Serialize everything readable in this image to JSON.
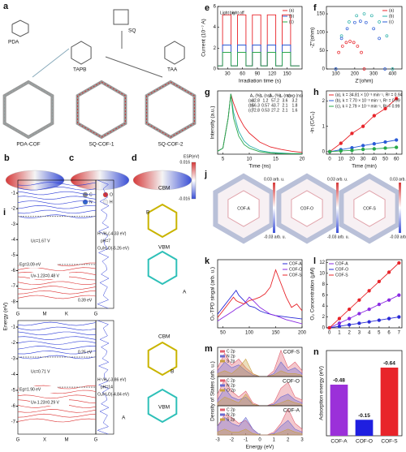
{
  "figure": {
    "a": {
      "panel": "a",
      "labels": [
        "PDA",
        "SQ",
        "TAPB",
        "TAA",
        "PDA-COF",
        "SQ-COF-1",
        "SQ-COF-2"
      ]
    },
    "bcd": {
      "panels": [
        "b",
        "c",
        "d"
      ],
      "colorbar_title": "ESP(eV)",
      "colorbar_ticks": [
        0.016,
        -0.016
      ],
      "atoms": [
        "C",
        "O",
        "N",
        "H"
      ]
    },
    "i": {
      "panel": "i",
      "ylabel": "Energy (eV)",
      "top": {
        "yticks": [
          -1,
          -2,
          -3,
          -4,
          -5,
          -6,
          -7,
          -8
        ],
        "kpoints": [
          "G",
          "M",
          "K",
          "G"
        ],
        "annotations": [
          "Uc=1.67 V",
          "Eg=3.09 eV",
          "Uv-1.23=0.48 V",
          "H⁺/H₂(-4.33 eV)",
          "pH=7",
          "O₂/H₂O(-5.26 eV)",
          "0.39 eV"
        ],
        "structure_labels": [
          "CBM",
          "B",
          "VBM",
          "A"
        ]
      },
      "bottom": {
        "yticks": [
          -1,
          -2,
          -3,
          -4,
          -5,
          -6,
          -7
        ],
        "kpoints": [
          "G",
          "X",
          "M",
          "G"
        ],
        "annotations": [
          "0.25 eV",
          "Uc=0.71 V",
          "Eg=1.90 eV",
          "Uv-1.23=0.29 V",
          "H⁺/H₂(-3.86 eV)",
          "pH=14",
          "O₂/H₂O(-4.84 eV)"
        ],
        "structure_labels": [
          "CBM",
          "B",
          "VBM",
          "A"
        ]
      }
    },
    "j": {
      "panel": "j",
      "labels": [
        "COF-A",
        "COF-O",
        "COF-S"
      ],
      "colorbar_max": "0.03 arb. u.",
      "colorbar_min": "-0.03 arb. u."
    }
  },
  "chart_data": [
    {
      "type": "line",
      "panel": "e",
      "xlabel": "Irradiation time (s)",
      "ylabel": "Current (10⁻⁷ A)",
      "annotations": [
        "Light on",
        "Light off"
      ],
      "x": [
        10,
        20,
        20,
        37,
        37,
        50,
        50,
        67,
        67,
        80,
        80,
        97,
        97,
        110,
        110,
        127,
        127,
        140,
        140,
        157,
        157,
        175
      ],
      "xlim": [
        10,
        180
      ],
      "xticks": [
        30,
        60,
        90,
        120,
        150
      ],
      "ylim": [
        0,
        6
      ],
      "yticks": [
        0,
        2,
        4,
        6
      ],
      "legend": "upper right",
      "series": [
        {
          "name": "(a)",
          "color": "#e8242a",
          "values": [
            0.3,
            0.3,
            5.2,
            5.2,
            0.3,
            0.3,
            5.2,
            5.2,
            0.3,
            0.3,
            5.2,
            5.2,
            0.3,
            0.3,
            5.2,
            5.2,
            0.3,
            0.3,
            5.2,
            5.2,
            0.3,
            0.3
          ]
        },
        {
          "name": "(b)",
          "color": "#2a5bd7",
          "values": [
            0.3,
            0.3,
            2.3,
            2.3,
            0.3,
            0.3,
            2.3,
            2.3,
            0.3,
            0.3,
            2.3,
            2.3,
            0.3,
            0.3,
            2.3,
            2.3,
            0.3,
            0.3,
            2.3,
            2.3,
            0.3,
            0.3
          ]
        },
        {
          "name": "(c)",
          "color": "#2aa84a",
          "values": [
            0.3,
            0.3,
            1.6,
            1.6,
            0.3,
            0.3,
            1.6,
            1.6,
            0.3,
            0.3,
            1.6,
            1.6,
            0.3,
            0.3,
            1.6,
            1.6,
            0.3,
            0.3,
            1.6,
            1.6,
            0.3,
            0.3
          ]
        }
      ]
    },
    {
      "type": "scatter",
      "panel": "f",
      "xlabel": "Z'(ohm)",
      "ylabel": "-Z''(ohm)",
      "xlim": [
        50,
        450
      ],
      "xticks": [
        100,
        200,
        300,
        400
      ],
      "ylim": [
        0,
        170
      ],
      "yticks": [
        0,
        50,
        100,
        150
      ],
      "legend": "upper right",
      "series": [
        {
          "name": "(a)",
          "color": "#e8242a",
          "x": [
            100,
            115,
            135,
            155,
            175,
            195,
            215,
            235,
            250
          ],
          "values": [
            0,
            45,
            62,
            72,
            75,
            72,
            62,
            45,
            0
          ]
        },
        {
          "name": "(b)",
          "color": "#2ab0a8",
          "x": [
            100,
            130,
            170,
            210,
            250,
            290,
            330,
            370,
            400
          ],
          "values": [
            0,
            90,
            128,
            145,
            150,
            145,
            128,
            90,
            0
          ]
        },
        {
          "name": "(c)",
          "color": "#2a5bd7",
          "x": [
            100,
            130,
            160,
            200,
            230,
            260,
            300,
            330,
            360
          ],
          "values": [
            0,
            83,
            109.5,
            126.5,
            130,
            126.5,
            109.5,
            83,
            0
          ]
        }
      ]
    },
    {
      "type": "line",
      "panel": "g",
      "xlabel": "Time (ns)",
      "ylabel": "Intensity (a.u.)",
      "x": [
        4,
        5,
        6,
        6.5,
        7,
        8,
        9,
        10,
        12,
        14,
        16,
        18,
        20
      ],
      "xlim": [
        4,
        20
      ],
      "xticks": [
        5,
        10,
        15,
        20
      ],
      "ylim": [
        0,
        1.05
      ],
      "series": [
        {
          "name": "(a)",
          "color": "#e8242a",
          "values": [
            0.05,
            0.1,
            0.6,
            1,
            0.85,
            0.62,
            0.46,
            0.35,
            0.2,
            0.12,
            0.08,
            0.05,
            0.03
          ]
        },
        {
          "name": "(b)",
          "color": "#2ab0a8",
          "values": [
            0.05,
            0.1,
            0.6,
            1,
            0.7,
            0.38,
            0.22,
            0.14,
            0.06,
            0.03,
            0.02,
            0.01,
            0.01
          ]
        },
        {
          "name": "(c)",
          "color": "#2aa84a",
          "values": [
            0.05,
            0.1,
            0.6,
            1,
            0.6,
            0.3,
            0.16,
            0.1,
            0.04,
            0.02,
            0.01,
            0.01,
            0.01
          ]
        }
      ],
      "table": {
        "columns": [
          "A₁ (%)",
          "τ₁ (ns)",
          "A₂ (%)",
          "τ₂ (ns)",
          "τavg (ns)"
        ],
        "rows": [
          {
            "label": "(a)",
            "cells": [
              42.8,
              1.2,
              57.2,
              3.6,
              3.2
            ]
          },
          {
            "label": "(b)",
            "cells": [
              56.3,
              0.57,
              43.7,
              2.1,
              1.8
            ]
          },
          {
            "label": "(c)",
            "cells": [
              72.8,
              0.53,
              27.2,
              2.1,
              1.6
            ]
          }
        ]
      }
    },
    {
      "type": "line",
      "markers": true,
      "panel": "h",
      "xlabel": "Time (min)",
      "ylabel": "-ln (C/C₀)",
      "x": [
        0,
        10,
        20,
        30,
        40,
        50,
        60
      ],
      "xlim": [
        -3,
        65
      ],
      "xticks": [
        0,
        10,
        20,
        30,
        40,
        50,
        60
      ],
      "ylim": [
        -0.1,
        2.4
      ],
      "yticks": [
        0,
        1,
        2
      ],
      "legend": "upper left",
      "series": [
        {
          "name": "(a), k = 34.81 × 10⁻³ min⁻¹, R² = 0.94",
          "color": "#e8242a",
          "values": [
            0,
            0.33,
            0.72,
            1.0,
            1.42,
            1.7,
            2.1
          ]
        },
        {
          "name": "(b), k = 7.70 × 10⁻³ min⁻¹, R² = 0.99",
          "color": "#2a5bd7",
          "values": [
            0,
            0.08,
            0.15,
            0.24,
            0.31,
            0.38,
            0.46
          ]
        },
        {
          "name": "(c), k = 2.79 × 10⁻³ min⁻¹, R² = 0.99",
          "color": "#2aa84a",
          "values": [
            0,
            0.03,
            0.05,
            0.09,
            0.11,
            0.14,
            0.17
          ]
        }
      ]
    },
    {
      "type": "line",
      "panel": "k",
      "ylabel": "O₂-TPD singal (arb. u.)",
      "x": [
        40,
        50,
        60,
        70,
        75,
        80,
        90,
        100,
        110,
        120,
        130,
        140,
        150,
        160,
        170,
        180,
        190,
        200
      ],
      "xlim": [
        40,
        200
      ],
      "xticks": [
        50,
        100,
        150,
        200
      ],
      "ylim": [
        0,
        1
      ],
      "legend": "upper right",
      "series": [
        {
          "name": "COF-A",
          "color": "#2a2ad7",
          "values": [
            0.2,
            0.3,
            0.4,
            0.5,
            0.55,
            0.48,
            0.4,
            0.32,
            0.3,
            0.25,
            0.22,
            0.2,
            0.18,
            0.17,
            0.16,
            0.15,
            0.14,
            0.13
          ]
        },
        {
          "name": "COF-O",
          "color": "#8a2be2",
          "values": [
            0.1,
            0.15,
            0.2,
            0.25,
            0.28,
            0.3,
            0.35,
            0.45,
            0.38,
            0.3,
            0.25,
            0.2,
            0.18,
            0.15,
            0.12,
            0.1,
            0.08,
            0.06
          ]
        },
        {
          "name": "COF-S",
          "color": "#e8242a",
          "values": [
            0.15,
            0.25,
            0.35,
            0.45,
            0.4,
            0.38,
            0.35,
            0.4,
            0.42,
            0.45,
            0.5,
            0.6,
            0.85,
            0.65,
            0.45,
            0.3,
            0.35,
            0.25
          ]
        }
      ]
    },
    {
      "type": "line",
      "markers": true,
      "panel": "l",
      "ylabel": "O₂ Concentration (μM)",
      "x": [
        0,
        1,
        2,
        3,
        4,
        5,
        6,
        7
      ],
      "xlim": [
        -0.3,
        7.3
      ],
      "xticks": [
        0,
        1,
        2,
        3,
        4,
        5,
        6,
        7
      ],
      "ylim": [
        0,
        12.5
      ],
      "yticks": [
        0,
        2,
        4,
        6,
        8,
        10,
        12
      ],
      "legend": "upper left",
      "series": [
        {
          "name": "COF-A",
          "color": "#8a2be2",
          "values": [
            0,
            0.85,
            1.7,
            2.6,
            3.4,
            4.3,
            5.1,
            6
          ]
        },
        {
          "name": "COF-O",
          "color": "#2a2ad7",
          "values": [
            0,
            0.28,
            0.56,
            0.84,
            1.1,
            1.4,
            1.7,
            2
          ]
        },
        {
          "name": "COF-S",
          "color": "#e8242a",
          "values": [
            0,
            1.7,
            3.4,
            5.1,
            6.8,
            8.5,
            10.2,
            11.9
          ]
        }
      ]
    },
    {
      "type": "area",
      "panel": "m",
      "label": "COF-S",
      "x": [
        -3,
        -2.5,
        -2,
        -1.5,
        -1,
        -0.5,
        0,
        0.5,
        1,
        1.5,
        2,
        2.5,
        3
      ],
      "xlim": [
        -3,
        3
      ],
      "ylim": [
        0,
        1
      ],
      "legend": "upper left",
      "series": [
        {
          "name": "C 2p",
          "color": "#e06070",
          "values": [
            0.3,
            0.8,
            0.4,
            0.6,
            0.3,
            0.1,
            0,
            0,
            0.2,
            0.9,
            0.3,
            0.5,
            0.2
          ]
        },
        {
          "name": "N 2p",
          "color": "#6a6ad0",
          "values": [
            0.2,
            0.5,
            0.3,
            0.4,
            0.2,
            0.05,
            0,
            0,
            0.1,
            0.5,
            0.2,
            0.3,
            0.1
          ]
        },
        {
          "name": "S 2p",
          "color": "#c8a040",
          "values": [
            0.1,
            0.2,
            0.1,
            0.3,
            0.6,
            0.1,
            0,
            0,
            0.05,
            0.2,
            0.1,
            0.1,
            0.05
          ]
        }
      ]
    },
    {
      "type": "area",
      "label": "COF-O",
      "ylabel": "Density of States (arb. u.)",
      "x": [
        -3,
        -2.5,
        -2,
        -1.5,
        -1,
        -0.5,
        0,
        0.5,
        1,
        1.5,
        2,
        2.5,
        3
      ],
      "xlim": [
        -3,
        3
      ],
      "ylim": [
        0,
        1
      ],
      "legend": "upper left",
      "series": [
        {
          "name": "C 2p",
          "color": "#e06070",
          "values": [
            0.4,
            0.9,
            0.5,
            0.3,
            0.5,
            0.1,
            0,
            0,
            0.1,
            0.6,
            0.8,
            0.3,
            0.2
          ]
        },
        {
          "name": "N 2p",
          "color": "#6a6ad0",
          "values": [
            0.2,
            0.6,
            0.3,
            0.2,
            0.3,
            0.05,
            0,
            0,
            0.05,
            0.3,
            0.4,
            0.2,
            0.1
          ]
        },
        {
          "name": "O 2p",
          "color": "#c8a040",
          "values": [
            0.1,
            0.3,
            0.2,
            0.1,
            0.4,
            0.05,
            0,
            0,
            0.02,
            0.1,
            0.2,
            0.1,
            0.05
          ]
        }
      ]
    },
    {
      "type": "area",
      "label": "COF-A",
      "xlabel": "Energy (eV)",
      "x": [
        -3,
        -2.5,
        -2,
        -1.5,
        -1,
        -0.5,
        0,
        0.5,
        1,
        1.5,
        2,
        2.5,
        3
      ],
      "xlim": [
        -3,
        3
      ],
      "xticks": [
        -3,
        -2,
        -1,
        0,
        1,
        2,
        3
      ],
      "ylim": [
        0,
        1
      ],
      "legend": "upper left",
      "series": [
        {
          "name": "C 2p",
          "color": "#e06070",
          "values": [
            0.3,
            0.7,
            0.6,
            0.4,
            0.5,
            0.2,
            0,
            0,
            0.1,
            0.4,
            0.9,
            0.4,
            0.2
          ]
        },
        {
          "name": "N 2p",
          "color": "#6a6ad0",
          "values": [
            0.3,
            0.6,
            0.4,
            0.3,
            0.6,
            0.2,
            0,
            0,
            0.05,
            0.3,
            0.5,
            0.2,
            0.1
          ]
        },
        {
          "name": "S 2p",
          "color": "#c8a040",
          "values": [
            0.1,
            0.2,
            0.1,
            0.1,
            0.2,
            0.05,
            0,
            0,
            0.02,
            0.1,
            0.2,
            0.1,
            0.05
          ]
        }
      ]
    },
    {
      "type": "bar",
      "panel": "n",
      "ylabel": "Adsorption energy (eV)",
      "categories": [
        "COF-A",
        "COF-O",
        "COF-S"
      ],
      "values": [
        -0.48,
        -0.15,
        -0.64
      ],
      "colors": [
        "#9b30d9",
        "#1f1fe0",
        "#e8242a"
      ],
      "ylim": [
        0,
        -0.8
      ]
    }
  ]
}
